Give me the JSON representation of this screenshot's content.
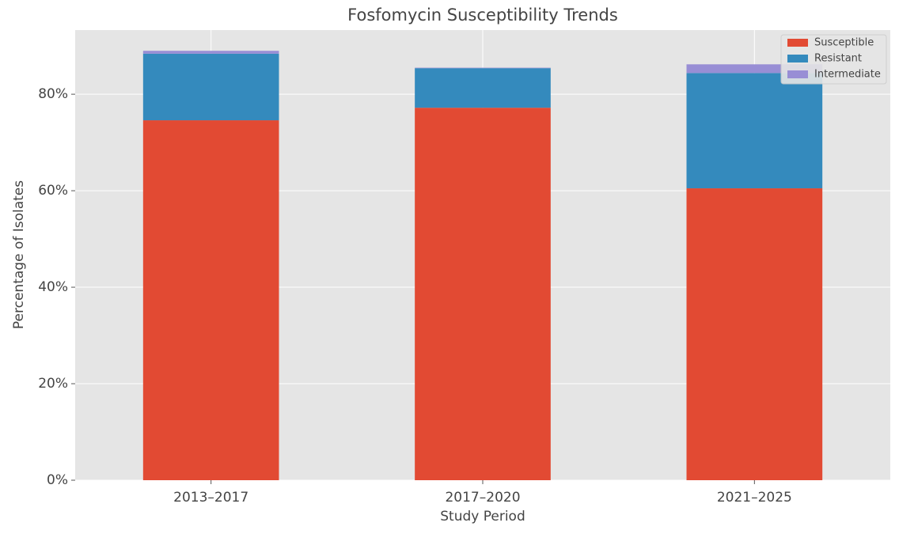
{
  "chart_data": {
    "type": "stacked_bar",
    "title": "Fosfomycin Susceptibility Trends",
    "x_label": "Study Period",
    "y_label": "Percentage of Isolates",
    "categories": [
      "2013–2017",
      "2017–2020",
      "2021–2025"
    ],
    "series": [
      {
        "name": "Susceptible",
        "color": "#E24A33",
        "values": [
          74.6,
          77.2,
          60.5
        ]
      },
      {
        "name": "Resistant",
        "color": "#348ABD",
        "values": [
          13.8,
          8.2,
          23.9
        ]
      },
      {
        "name": "Intermediate",
        "color": "#988ED5",
        "values": [
          0.6,
          0.1,
          1.8
        ]
      }
    ],
    "ylim": [
      0,
      93.3
    ],
    "yticks": [
      {
        "value": 0,
        "label": "0%"
      },
      {
        "value": 20,
        "label": "20%"
      },
      {
        "value": 40,
        "label": "40%"
      },
      {
        "value": 60,
        "label": "60%"
      },
      {
        "value": 80,
        "label": "80%"
      }
    ],
    "grid": true,
    "legend": "upper right"
  }
}
